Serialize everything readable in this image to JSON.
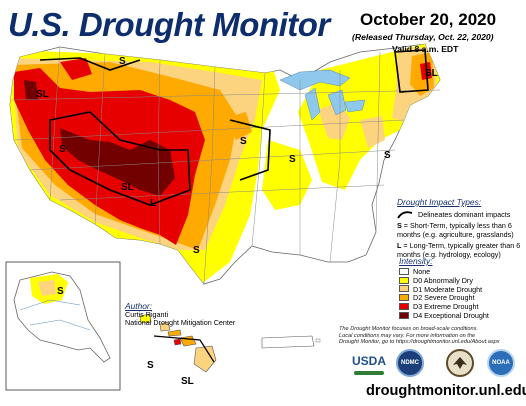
{
  "header": {
    "title": "U.S. Drought Monitor",
    "date": "October 20, 2020",
    "released": "(Released Thursday, Oct. 22, 2020)",
    "valid": "Valid 8 a.m. EDT"
  },
  "impact_types": {
    "heading": "Drought Impact Types:",
    "delineates": "Delineates dominant impacts",
    "short_term_key": "S",
    "short_term_text": " = Short-Term, typically less than 6 months (e.g. agriculture, grasslands)",
    "long_term_key": "L",
    "long_term_text": " = Long-Term, typically greater than 6 months (e.g. hydrology, ecology)"
  },
  "intensity": {
    "heading": "Intensity:",
    "levels": [
      {
        "label": "None",
        "color": "#ffffff"
      },
      {
        "label": "D0 Abnormally Dry",
        "color": "#ffff00"
      },
      {
        "label": "D1 Moderate Drought",
        "color": "#fcd37f"
      },
      {
        "label": "D2 Severe Drought",
        "color": "#ffaa00"
      },
      {
        "label": "D3 Extreme Drought",
        "color": "#e60000"
      },
      {
        "label": "D4 Exceptional Drought",
        "color": "#730000"
      }
    ]
  },
  "author": {
    "label": "Author:",
    "name": "Curtis Riganti",
    "org": "National Drought Mitigation Center"
  },
  "disclaimer": {
    "line1": "The Drought Monitor focuses on broad-scale conditions.",
    "line2": "Local conditions may vary. For more information on the",
    "line3": "Drought Monitor, go to https://droughtmonitor.unl.edu/About.aspx"
  },
  "logos": {
    "usda": "USDA",
    "ndmc": "NDMC",
    "noaa": "NOAA"
  },
  "map_labels": {
    "s": "S",
    "l": "L",
    "sl": "SL"
  },
  "url": "droughtmonitor.unl.edu"
}
